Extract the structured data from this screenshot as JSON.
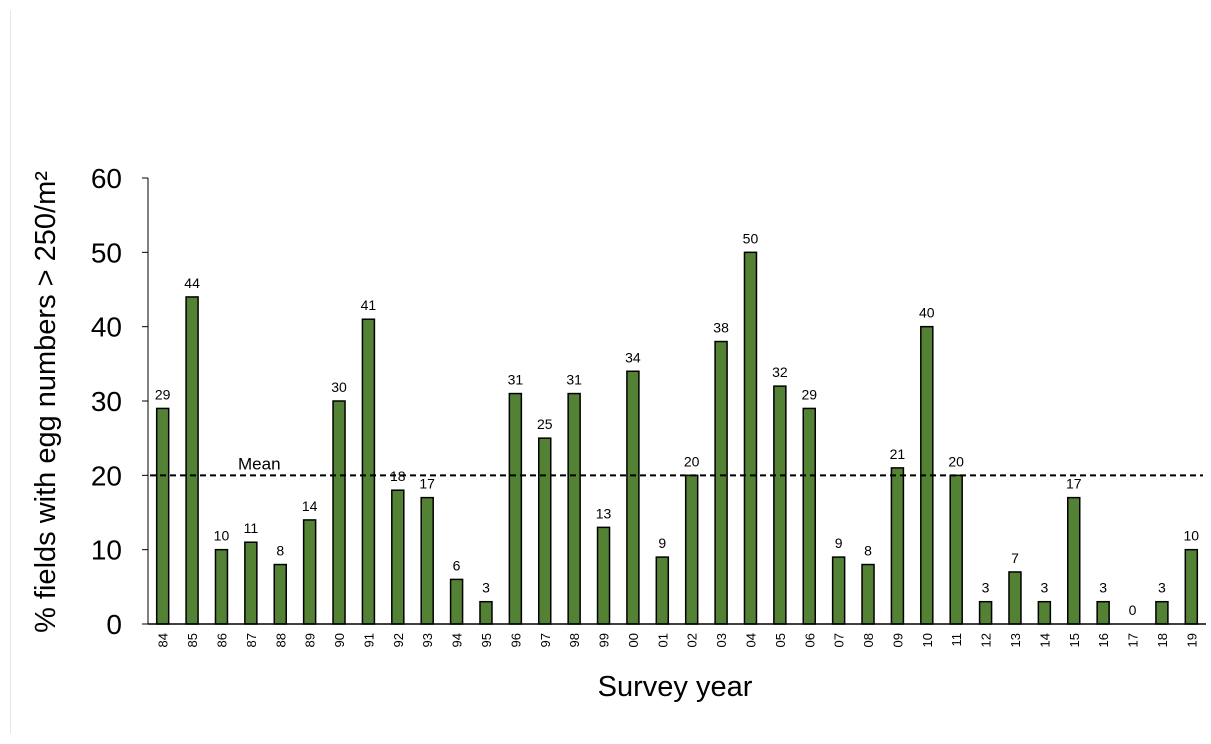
{
  "chart_data": {
    "type": "bar",
    "xlabel": "Survey year",
    "ylabel": "% fields with egg numbers > 250/m²",
    "ylim": [
      0,
      60
    ],
    "yticks": [
      0,
      10,
      20,
      30,
      40,
      50,
      60
    ],
    "grid": false,
    "bar_color": "#548235",
    "bar_edge_color": "#000000",
    "categories": [
      "84",
      "85",
      "86",
      "87",
      "88",
      "89",
      "90",
      "91",
      "92",
      "93",
      "94",
      "95",
      "96",
      "97",
      "98",
      "99",
      "00",
      "01",
      "02",
      "03",
      "04",
      "05",
      "06",
      "07",
      "08",
      "09",
      "10",
      "11",
      "12",
      "13",
      "14",
      "15",
      "16",
      "17",
      "18",
      "19"
    ],
    "values": [
      29,
      44,
      10,
      11,
      8,
      14,
      30,
      41,
      18,
      17,
      6,
      3,
      31,
      25,
      31,
      13,
      34,
      9,
      20,
      38,
      50,
      32,
      29,
      9,
      8,
      21,
      40,
      20,
      3,
      7,
      3,
      17,
      3,
      0,
      3,
      10
    ],
    "reference_line": {
      "label": "Mean",
      "value": 20,
      "style": "dashed"
    }
  }
}
